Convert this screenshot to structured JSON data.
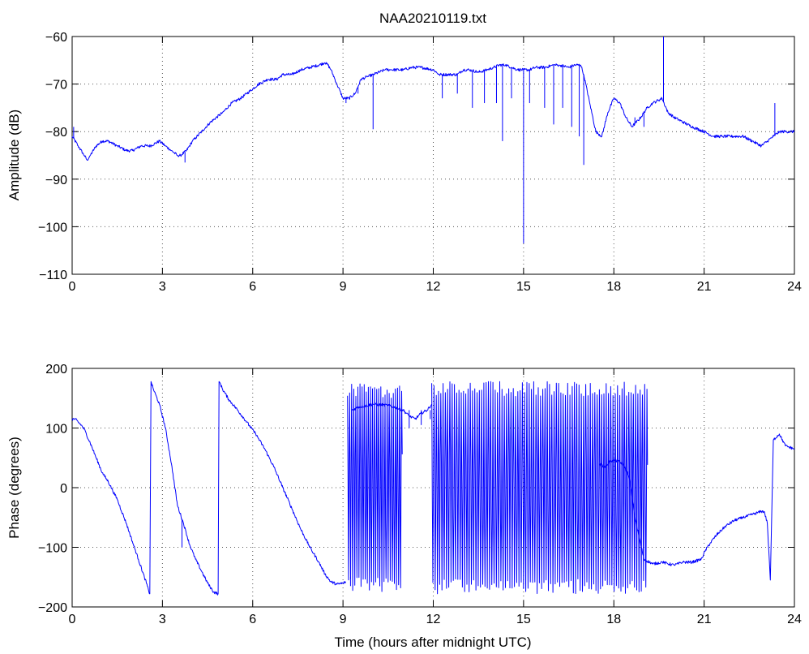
{
  "chart_data": [
    {
      "type": "line",
      "title": "NAA20210119.txt",
      "xlabel": "",
      "ylabel": "Amplitude (dB)",
      "xlim": [
        0,
        24
      ],
      "ylim": [
        -110,
        -60
      ],
      "xticks": [
        0,
        3,
        6,
        9,
        12,
        15,
        18,
        21,
        24
      ],
      "yticks": [
        -110,
        -100,
        -90,
        -80,
        -70,
        -60
      ],
      "xtick_labels": [
        "0",
        "3",
        "6",
        "9",
        "12",
        "15",
        "18",
        "21",
        "24"
      ],
      "ytick_labels": [
        "−110",
        "−100",
        "−90",
        "−80",
        "−70",
        "−60"
      ],
      "grid": true,
      "series": [
        {
          "color": "#0000ff",
          "x": [
            0.0,
            0.2,
            0.4,
            0.5,
            0.6,
            0.8,
            1.0,
            1.2,
            1.5,
            1.8,
            2.0,
            2.3,
            2.6,
            2.9,
            3.1,
            3.3,
            3.5,
            3.6,
            3.8,
            4.0,
            4.3,
            4.6,
            5.0,
            5.3,
            5.6,
            5.8,
            6.0,
            6.2,
            6.5,
            6.8,
            7.0,
            7.3,
            7.6,
            7.9,
            8.2,
            8.4,
            8.5,
            8.6,
            8.8,
            9.0,
            9.2,
            9.4,
            9.6,
            9.8,
            10.0,
            10.2,
            10.4,
            10.6,
            11.0,
            11.3,
            11.6,
            12.0,
            12.2,
            12.5,
            12.8,
            13.0,
            13.2,
            13.5,
            13.8,
            14.0,
            14.2,
            14.4,
            14.6,
            14.8,
            15.0,
            15.2,
            15.4,
            15.7,
            16.0,
            16.2,
            16.5,
            16.7,
            16.9,
            17.0,
            17.2,
            17.4,
            17.6,
            17.8,
            18.0,
            18.2,
            18.4,
            18.6,
            18.9,
            19.1,
            19.3,
            19.6,
            19.8,
            20.0,
            20.3,
            20.6,
            21.0,
            21.3,
            21.6,
            22.0,
            22.3,
            22.6,
            22.9,
            23.1,
            23.3,
            23.5,
            23.7,
            24.0
          ],
          "y": [
            -81,
            -83,
            -85,
            -86,
            -85,
            -83,
            -82,
            -82,
            -83,
            -84,
            -84,
            -83,
            -83,
            -82,
            -83,
            -84,
            -85,
            -85,
            -84,
            -82,
            -80,
            -78,
            -76,
            -74,
            -73,
            -72,
            -71,
            -70,
            -69,
            -69,
            -68,
            -68,
            -67,
            -66.5,
            -66,
            -65.5,
            -66,
            -67,
            -70,
            -73,
            -73,
            -72,
            -69,
            -68.5,
            -68,
            -67.5,
            -67,
            -67,
            -67,
            -66.5,
            -66.5,
            -67,
            -68,
            -68,
            -68,
            -67,
            -67,
            -67.5,
            -67,
            -66.5,
            -66,
            -66,
            -66.5,
            -67,
            -67,
            -67,
            -66.5,
            -66.5,
            -66,
            -66,
            -66.5,
            -66,
            -66,
            -68,
            -74,
            -80,
            -81,
            -76,
            -73,
            -74,
            -77,
            -79,
            -77,
            -75,
            -74,
            -73,
            -76,
            -77,
            -78,
            -79,
            -80,
            -81,
            -81,
            -81,
            -81,
            -82,
            -83,
            -82,
            -81,
            -80,
            -80,
            -80
          ],
          "spikes": [
            {
              "x": 0.05,
              "y": -79
            },
            {
              "x": 3.75,
              "y": -86.5
            },
            {
              "x": 9.1,
              "y": -74
            },
            {
              "x": 9.5,
              "y": -72
            },
            {
              "x": 10.0,
              "y": -79.5
            },
            {
              "x": 12.3,
              "y": -73
            },
            {
              "x": 12.8,
              "y": -72
            },
            {
              "x": 13.3,
              "y": -75
            },
            {
              "x": 13.7,
              "y": -74
            },
            {
              "x": 14.1,
              "y": -74
            },
            {
              "x": 14.3,
              "y": -82
            },
            {
              "x": 14.6,
              "y": -73
            },
            {
              "x": 15.0,
              "y": -103.5
            },
            {
              "x": 15.2,
              "y": -74
            },
            {
              "x": 15.7,
              "y": -75
            },
            {
              "x": 16.0,
              "y": -78.5
            },
            {
              "x": 16.3,
              "y": -75
            },
            {
              "x": 16.6,
              "y": -79
            },
            {
              "x": 16.85,
              "y": -81
            },
            {
              "x": 17.0,
              "y": -87
            },
            {
              "x": 18.7,
              "y": -77
            },
            {
              "x": 19.0,
              "y": -79
            },
            {
              "x": 19.65,
              "y": -60
            },
            {
              "x": 23.35,
              "y": -74
            }
          ]
        }
      ]
    },
    {
      "type": "line",
      "title": "",
      "xlabel": "Time (hours after midnight UTC)",
      "ylabel": "Phase (degrees)",
      "xlim": [
        0,
        24
      ],
      "ylim": [
        -200,
        200
      ],
      "xticks": [
        0,
        3,
        6,
        9,
        12,
        15,
        18,
        21,
        24
      ],
      "yticks": [
        -200,
        -100,
        0,
        100,
        200
      ],
      "xtick_labels": [
        "0",
        "3",
        "6",
        "9",
        "12",
        "15",
        "18",
        "21",
        "24"
      ],
      "ytick_labels": [
        "−200",
        "−100",
        "0",
        "100",
        "200"
      ],
      "grid": true,
      "series": [
        {
          "color": "#0000ff",
          "x": [
            0.0,
            0.1,
            0.2,
            0.3,
            0.4,
            0.6,
            0.8,
            1.0,
            1.2,
            1.5,
            1.8,
            2.0,
            2.2,
            2.4,
            2.5,
            2.55,
            2.58,
            2.62,
            2.7,
            2.9,
            3.1,
            3.3,
            3.5,
            3.7,
            3.9,
            4.1,
            4.3,
            4.5,
            4.7,
            4.85,
            4.88,
            4.92,
            5.0,
            5.2,
            5.5,
            5.8,
            6.1,
            6.4,
            6.7,
            7.0,
            7.3,
            7.6,
            7.9,
            8.2,
            8.4,
            8.6,
            8.8,
            9.0,
            9.1
          ],
          "y": [
            115,
            115,
            110,
            105,
            98,
            75,
            50,
            25,
            10,
            -20,
            -60,
            -90,
            -120,
            -150,
            -165,
            -175,
            -178,
            178,
            165,
            140,
            100,
            40,
            -30,
            -60,
            -95,
            -120,
            -140,
            -160,
            -175,
            -178,
            178,
            175,
            165,
            148,
            130,
            110,
            90,
            65,
            35,
            0,
            -35,
            -70,
            -100,
            -125,
            -145,
            -158,
            -162,
            -160,
            -158
          ],
          "spikes": [
            {
              "x": 3.65,
              "y": -100
            },
            {
              "x": 9.25,
              "y": -165
            },
            {
              "x": 11.6,
              "y": 105
            },
            {
              "x": 11.2,
              "y": 100
            },
            {
              "x": 11.9,
              "y": 115
            }
          ]
        },
        {
          "color": "#0000ff",
          "x": [
            9.3,
            9.5,
            10.0,
            10.5,
            11.0,
            11.2,
            11.4,
            11.6,
            11.8,
            11.95
          ],
          "y": [
            130,
            135,
            140,
            138,
            130,
            120,
            115,
            125,
            130,
            140
          ]
        },
        {
          "color": "#0000ff",
          "x": [
            17.5,
            17.7,
            17.9,
            18.1,
            18.3,
            18.5,
            18.7,
            19.0,
            19.3,
            19.6,
            20.0,
            20.3,
            20.6,
            20.9,
            21.1,
            21.4,
            21.7,
            22.0,
            22.3,
            22.6,
            22.9,
            23.0,
            23.1,
            23.2,
            23.3,
            23.5,
            23.7,
            24.0
          ],
          "y": [
            40,
            35,
            45,
            45,
            40,
            20,
            -50,
            -120,
            -128,
            -125,
            -130,
            -125,
            -125,
            -120,
            -100,
            -80,
            -65,
            -55,
            -50,
            -45,
            -40,
            -40,
            -60,
            -155,
            80,
            90,
            70,
            65
          ]
        }
      ],
      "oscillation_bands": [
        {
          "x_start": 9.15,
          "x_end": 10.95,
          "y_low": -175,
          "y_high": 175,
          "cycles": 52
        },
        {
          "x_start": 11.95,
          "x_end": 19.1,
          "y_low": -178,
          "y_high": 178,
          "cycles": 190
        }
      ]
    }
  ]
}
